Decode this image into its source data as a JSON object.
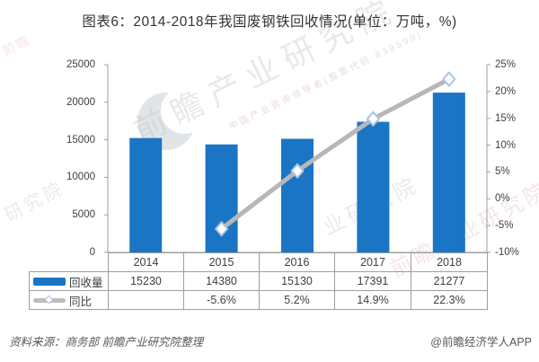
{
  "title": "图表6：2014-2018年我国废钢铁回收情况(单位：万吨，%)",
  "source_note": "资料来源：商务部 前瞻产业研究院整理",
  "credit": "@前瞻经济学人APP",
  "watermarks": {
    "brand": "前瞻产业研究院",
    "tagline": "中国产业咨询领导者(股票代码:839599)",
    "side": "前瞻产业研究院",
    "fragment": "业研究院",
    "fragment_small": "研究院",
    "corner": "前瞻"
  },
  "colors": {
    "bar": "#1b75c5",
    "line": "#b7b7b7",
    "marker_fill": "#ffffff",
    "marker_border": "#a9c4e2",
    "axis": "#9e9e9e",
    "tick_text": "#404040"
  },
  "chart_data": {
    "type": "bar",
    "subtype": "bar+line combo",
    "title": "图表6：2014-2018年我国废钢铁回收情况(单位：万吨，%)",
    "categories": [
      "2014",
      "2015",
      "2016",
      "2017",
      "2018"
    ],
    "series": [
      {
        "name": "回收量",
        "type": "bar",
        "axis": "left",
        "unit": "万吨",
        "values": [
          15230,
          14380,
          15130,
          17391,
          21277
        ]
      },
      {
        "name": "同比",
        "type": "line",
        "axis": "right",
        "unit": "%",
        "marker": "diamond",
        "values": [
          null,
          -5.6,
          5.2,
          14.9,
          22.3
        ]
      }
    ],
    "left_axis": {
      "min": 0,
      "max": 25000,
      "ticks": [
        "25000",
        "20000",
        "15000",
        "10000",
        "5000",
        "0"
      ]
    },
    "right_axis": {
      "min": -10,
      "max": 25,
      "ticks": [
        "25%",
        "20%",
        "15%",
        "10%",
        "5%",
        "0%",
        "-5%",
        "-10%"
      ]
    },
    "grid": "off",
    "legend_position": "bottom-left table",
    "table": {
      "recovery_label": "回收量",
      "recovery_values": [
        "15230",
        "14380",
        "15130",
        "17391",
        "21277"
      ],
      "yoy_label": "同比",
      "yoy_values": [
        "",
        "-5.6%",
        "5.2%",
        "14.9%",
        "22.3%"
      ]
    }
  }
}
